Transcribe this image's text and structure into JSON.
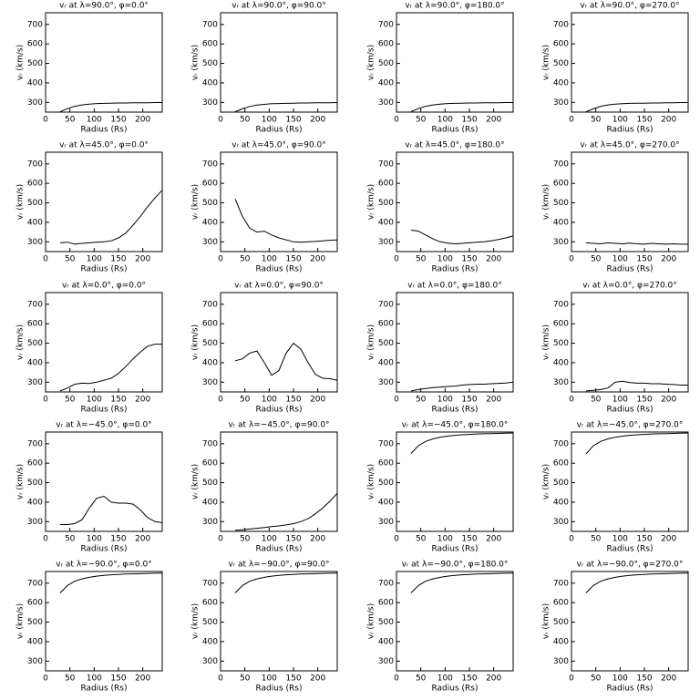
{
  "chart_data": [
    {
      "type": "line",
      "title": "vᵣ at λ=90.0°, φ=0.0°",
      "xlabel": "Radius (Rs)",
      "ylabel": "vᵣ (km/s)",
      "x": [
        30,
        45,
        60,
        75,
        90,
        105,
        120,
        135,
        150,
        165,
        180,
        195,
        210,
        225,
        240
      ],
      "values": [
        252,
        268,
        280,
        287,
        291,
        294,
        295,
        296,
        297,
        297,
        298,
        298,
        298,
        299,
        299
      ],
      "color": "#000000",
      "xlim": [
        0,
        240
      ],
      "ylim": [
        250,
        760
      ],
      "xticks": [
        0,
        50,
        100,
        150,
        200
      ],
      "yticks": [
        300,
        400,
        500,
        600,
        700
      ]
    },
    {
      "type": "line",
      "title": "vᵣ at λ=90.0°, φ=90.0°",
      "xlabel": "Radius (Rs)",
      "ylabel": "vᵣ (km/s)",
      "x": [
        30,
        45,
        60,
        75,
        90,
        105,
        120,
        135,
        150,
        165,
        180,
        195,
        210,
        225,
        240
      ],
      "values": [
        252,
        267,
        279,
        286,
        290,
        293,
        294,
        295,
        296,
        297,
        297,
        298,
        298,
        298,
        299
      ],
      "color": "#000000",
      "xlim": [
        0,
        240
      ],
      "ylim": [
        250,
        760
      ],
      "xticks": [
        0,
        50,
        100,
        150,
        200
      ],
      "yticks": [
        300,
        400,
        500,
        600,
        700
      ]
    },
    {
      "type": "line",
      "title": "vᵣ at λ=90.0°, φ=180.0°",
      "xlabel": "Radius (Rs)",
      "ylabel": "vᵣ (km/s)",
      "x": [
        30,
        45,
        60,
        75,
        90,
        105,
        120,
        135,
        150,
        165,
        180,
        195,
        210,
        225,
        240
      ],
      "values": [
        253,
        268,
        280,
        287,
        291,
        294,
        295,
        296,
        297,
        297,
        298,
        298,
        298,
        299,
        299
      ],
      "color": "#000000",
      "xlim": [
        0,
        240
      ],
      "ylim": [
        250,
        760
      ],
      "xticks": [
        0,
        50,
        100,
        150,
        200
      ],
      "yticks": [
        300,
        400,
        500,
        600,
        700
      ]
    },
    {
      "type": "line",
      "title": "vᵣ at λ=90.0°, φ=270.0°",
      "xlabel": "Radius (Rs)",
      "ylabel": "vᵣ (km/s)",
      "x": [
        30,
        45,
        60,
        75,
        90,
        105,
        120,
        135,
        150,
        165,
        180,
        195,
        210,
        225,
        240
      ],
      "values": [
        252,
        267,
        280,
        287,
        291,
        293,
        295,
        296,
        296,
        297,
        297,
        298,
        298,
        299,
        299
      ],
      "color": "#000000",
      "xlim": [
        0,
        240
      ],
      "ylim": [
        250,
        760
      ],
      "xticks": [
        0,
        50,
        100,
        150,
        200
      ],
      "yticks": [
        300,
        400,
        500,
        600,
        700
      ]
    },
    {
      "type": "line",
      "title": "vᵣ at λ=45.0°, φ=0.0°",
      "xlabel": "Radius (Rs)",
      "ylabel": "vᵣ (km/s)",
      "x": [
        30,
        45,
        60,
        75,
        90,
        105,
        120,
        135,
        150,
        165,
        180,
        195,
        210,
        225,
        240
      ],
      "values": [
        295,
        298,
        288,
        292,
        295,
        298,
        300,
        305,
        320,
        345,
        385,
        430,
        480,
        525,
        565
      ],
      "color": "#000000",
      "xlim": [
        0,
        240
      ],
      "ylim": [
        250,
        760
      ],
      "xticks": [
        0,
        50,
        100,
        150,
        200
      ],
      "yticks": [
        300,
        400,
        500,
        600,
        700
      ]
    },
    {
      "type": "line",
      "title": "vᵣ at λ=45.0°, φ=90.0°",
      "xlabel": "Radius (Rs)",
      "ylabel": "vᵣ (km/s)",
      "x": [
        30,
        45,
        60,
        75,
        90,
        105,
        120,
        135,
        150,
        165,
        180,
        195,
        210,
        225,
        240
      ],
      "values": [
        520,
        430,
        370,
        350,
        355,
        335,
        320,
        310,
        300,
        298,
        300,
        302,
        305,
        308,
        310
      ],
      "color": "#000000",
      "xlim": [
        0,
        240
      ],
      "ylim": [
        250,
        760
      ],
      "xticks": [
        0,
        50,
        100,
        150,
        200
      ],
      "yticks": [
        300,
        400,
        500,
        600,
        700
      ]
    },
    {
      "type": "line",
      "title": "vᵣ at λ=45.0°, φ=180.0°",
      "xlabel": "Radius (Rs)",
      "ylabel": "vᵣ (km/s)",
      "x": [
        30,
        45,
        60,
        75,
        90,
        105,
        120,
        135,
        150,
        165,
        180,
        195,
        210,
        225,
        240
      ],
      "values": [
        360,
        355,
        335,
        315,
        300,
        293,
        290,
        292,
        295,
        298,
        300,
        305,
        312,
        320,
        330
      ],
      "color": "#000000",
      "xlim": [
        0,
        240
      ],
      "ylim": [
        250,
        760
      ],
      "xticks": [
        0,
        50,
        100,
        150,
        200
      ],
      "yticks": [
        300,
        400,
        500,
        600,
        700
      ]
    },
    {
      "type": "line",
      "title": "vᵣ at λ=45.0°, φ=270.0°",
      "xlabel": "Radius (Rs)",
      "ylabel": "vᵣ (km/s)",
      "x": [
        30,
        45,
        60,
        75,
        90,
        105,
        120,
        135,
        150,
        165,
        180,
        195,
        210,
        225,
        240
      ],
      "values": [
        295,
        292,
        290,
        295,
        292,
        290,
        293,
        290,
        288,
        292,
        290,
        288,
        290,
        288,
        288
      ],
      "color": "#000000",
      "xlim": [
        0,
        240
      ],
      "ylim": [
        250,
        760
      ],
      "xticks": [
        0,
        50,
        100,
        150,
        200
      ],
      "yticks": [
        300,
        400,
        500,
        600,
        700
      ]
    },
    {
      "type": "line",
      "title": "vᵣ at λ=0.0°, φ=0.0°",
      "xlabel": "Radius (Rs)",
      "ylabel": "vᵣ (km/s)",
      "x": [
        30,
        45,
        60,
        75,
        90,
        105,
        120,
        135,
        150,
        165,
        180,
        195,
        210,
        225,
        240
      ],
      "values": [
        255,
        270,
        290,
        295,
        293,
        300,
        310,
        320,
        345,
        380,
        420,
        455,
        485,
        495,
        495
      ],
      "color": "#000000",
      "xlim": [
        0,
        240
      ],
      "ylim": [
        250,
        760
      ],
      "xticks": [
        0,
        50,
        100,
        150,
        200
      ],
      "yticks": [
        300,
        400,
        500,
        600,
        700
      ]
    },
    {
      "type": "line",
      "title": "vᵣ at λ=0.0°, φ=90.0°",
      "xlabel": "Radius (Rs)",
      "ylabel": "vᵣ (km/s)",
      "x": [
        30,
        45,
        60,
        75,
        90,
        105,
        120,
        135,
        150,
        165,
        180,
        195,
        210,
        225,
        240
      ],
      "values": [
        410,
        420,
        450,
        460,
        400,
        335,
        360,
        450,
        500,
        470,
        400,
        340,
        320,
        318,
        310
      ],
      "color": "#000000",
      "xlim": [
        0,
        240
      ],
      "ylim": [
        250,
        760
      ],
      "xticks": [
        0,
        50,
        100,
        150,
        200
      ],
      "yticks": [
        300,
        400,
        500,
        600,
        700
      ]
    },
    {
      "type": "line",
      "title": "vᵣ at λ=0.0°, φ=180.0°",
      "xlabel": "Radius (Rs)",
      "ylabel": "vᵣ (km/s)",
      "x": [
        30,
        45,
        60,
        75,
        90,
        105,
        120,
        135,
        150,
        165,
        180,
        195,
        210,
        225,
        240
      ],
      "values": [
        255,
        262,
        268,
        272,
        275,
        278,
        280,
        285,
        288,
        290,
        290,
        292,
        294,
        296,
        300
      ],
      "color": "#000000",
      "xlim": [
        0,
        240
      ],
      "ylim": [
        250,
        760
      ],
      "xticks": [
        0,
        50,
        100,
        150,
        200
      ],
      "yticks": [
        300,
        400,
        500,
        600,
        700
      ]
    },
    {
      "type": "line",
      "title": "vᵣ at λ=0.0°, φ=270.0°",
      "xlabel": "Radius (Rs)",
      "ylabel": "vᵣ (km/s)",
      "x": [
        30,
        45,
        60,
        75,
        90,
        105,
        120,
        135,
        150,
        165,
        180,
        195,
        210,
        225,
        240
      ],
      "values": [
        255,
        258,
        262,
        270,
        300,
        305,
        298,
        295,
        295,
        292,
        292,
        290,
        288,
        285,
        285
      ],
      "color": "#000000",
      "xlim": [
        0,
        240
      ],
      "ylim": [
        250,
        760
      ],
      "xticks": [
        0,
        50,
        100,
        150,
        200
      ],
      "yticks": [
        300,
        400,
        500,
        600,
        700
      ]
    },
    {
      "type": "line",
      "title": "vᵣ at λ=−45.0°, φ=0.0°",
      "xlabel": "Radius (Rs)",
      "ylabel": "vᵣ (km/s)",
      "x": [
        30,
        45,
        60,
        75,
        90,
        105,
        120,
        135,
        150,
        165,
        180,
        195,
        210,
        225,
        240
      ],
      "values": [
        285,
        285,
        290,
        310,
        370,
        420,
        430,
        400,
        395,
        395,
        390,
        360,
        320,
        300,
        295
      ],
      "color": "#000000",
      "xlim": [
        0,
        240
      ],
      "ylim": [
        250,
        760
      ],
      "xticks": [
        0,
        50,
        100,
        150,
        200
      ],
      "yticks": [
        300,
        400,
        500,
        600,
        700
      ]
    },
    {
      "type": "line",
      "title": "vᵣ at λ=−45.0°, φ=90.0°",
      "xlabel": "Radius (Rs)",
      "ylabel": "vᵣ (km/s)",
      "x": [
        30,
        45,
        60,
        75,
        90,
        105,
        120,
        135,
        150,
        165,
        180,
        195,
        210,
        225,
        240
      ],
      "values": [
        255,
        258,
        262,
        266,
        270,
        275,
        278,
        283,
        290,
        300,
        315,
        340,
        370,
        405,
        445
      ],
      "color": "#000000",
      "xlim": [
        0,
        240
      ],
      "ylim": [
        250,
        760
      ],
      "xticks": [
        0,
        50,
        100,
        150,
        200
      ],
      "yticks": [
        300,
        400,
        500,
        600,
        700
      ]
    },
    {
      "type": "line",
      "title": "vᵣ at λ=−45.0°, φ=180.0°",
      "xlabel": "Radius (Rs)",
      "ylabel": "vᵣ (km/s)",
      "x": [
        30,
        45,
        60,
        75,
        90,
        105,
        120,
        135,
        150,
        165,
        180,
        195,
        210,
        225,
        240
      ],
      "values": [
        650,
        690,
        712,
        725,
        733,
        739,
        743,
        746,
        748,
        750,
        751,
        752,
        753,
        754,
        755
      ],
      "color": "#000000",
      "xlim": [
        0,
        240
      ],
      "ylim": [
        250,
        760
      ],
      "xticks": [
        0,
        50,
        100,
        150,
        200
      ],
      "yticks": [
        300,
        400,
        500,
        600,
        700
      ]
    },
    {
      "type": "line",
      "title": "vᵣ at λ=−45.0°, φ=270.0°",
      "xlabel": "Radius (Rs)",
      "ylabel": "vᵣ (km/s)",
      "x": [
        30,
        45,
        60,
        75,
        90,
        105,
        120,
        135,
        150,
        165,
        180,
        195,
        210,
        225,
        240
      ],
      "values": [
        648,
        690,
        712,
        725,
        733,
        739,
        743,
        746,
        748,
        750,
        751,
        752,
        753,
        754,
        755
      ],
      "color": "#000000",
      "xlim": [
        0,
        240
      ],
      "ylim": [
        250,
        760
      ],
      "xticks": [
        0,
        50,
        100,
        150,
        200
      ],
      "yticks": [
        300,
        400,
        500,
        600,
        700
      ]
    },
    {
      "type": "line",
      "title": "vᵣ at λ=−90.0°, φ=0.0°",
      "xlabel": "Radius (Rs)",
      "ylabel": "vᵣ (km/s)",
      "x": [
        30,
        45,
        60,
        75,
        90,
        105,
        120,
        135,
        150,
        165,
        180,
        195,
        210,
        225,
        240
      ],
      "values": [
        650,
        688,
        710,
        722,
        730,
        736,
        740,
        743,
        745,
        747,
        748,
        749,
        750,
        751,
        752
      ],
      "color": "#000000",
      "xlim": [
        0,
        240
      ],
      "ylim": [
        250,
        760
      ],
      "xticks": [
        0,
        50,
        100,
        150,
        200
      ],
      "yticks": [
        300,
        400,
        500,
        600,
        700
      ]
    },
    {
      "type": "line",
      "title": "vᵣ at λ=−90.0°, φ=90.0°",
      "xlabel": "Radius (Rs)",
      "ylabel": "vᵣ (km/s)",
      "x": [
        30,
        45,
        60,
        75,
        90,
        105,
        120,
        135,
        150,
        165,
        180,
        195,
        210,
        225,
        240
      ],
      "values": [
        650,
        688,
        710,
        722,
        730,
        736,
        740,
        743,
        745,
        747,
        748,
        749,
        750,
        751,
        752
      ],
      "color": "#000000",
      "xlim": [
        0,
        240
      ],
      "ylim": [
        250,
        760
      ],
      "xticks": [
        0,
        50,
        100,
        150,
        200
      ],
      "yticks": [
        300,
        400,
        500,
        600,
        700
      ]
    },
    {
      "type": "line",
      "title": "vᵣ at λ=−90.0°, φ=180.0°",
      "xlabel": "Radius (Rs)",
      "ylabel": "vᵣ (km/s)",
      "x": [
        30,
        45,
        60,
        75,
        90,
        105,
        120,
        135,
        150,
        165,
        180,
        195,
        210,
        225,
        240
      ],
      "values": [
        650,
        688,
        710,
        722,
        730,
        736,
        740,
        743,
        745,
        747,
        748,
        749,
        750,
        751,
        752
      ],
      "color": "#000000",
      "xlim": [
        0,
        240
      ],
      "ylim": [
        250,
        760
      ],
      "xticks": [
        0,
        50,
        100,
        150,
        200
      ],
      "yticks": [
        300,
        400,
        500,
        600,
        700
      ]
    },
    {
      "type": "line",
      "title": "vᵣ at λ=−90.0°, φ=270.0°",
      "xlabel": "Radius (Rs)",
      "ylabel": "vᵣ (km/s)",
      "x": [
        30,
        45,
        60,
        75,
        90,
        105,
        120,
        135,
        150,
        165,
        180,
        195,
        210,
        225,
        240
      ],
      "values": [
        650,
        688,
        710,
        722,
        730,
        736,
        740,
        743,
        745,
        747,
        748,
        749,
        750,
        751,
        752
      ],
      "color": "#000000",
      "xlim": [
        0,
        240
      ],
      "ylim": [
        250,
        760
      ],
      "xticks": [
        0,
        50,
        100,
        150,
        200
      ],
      "yticks": [
        300,
        400,
        500,
        600,
        700
      ]
    }
  ]
}
